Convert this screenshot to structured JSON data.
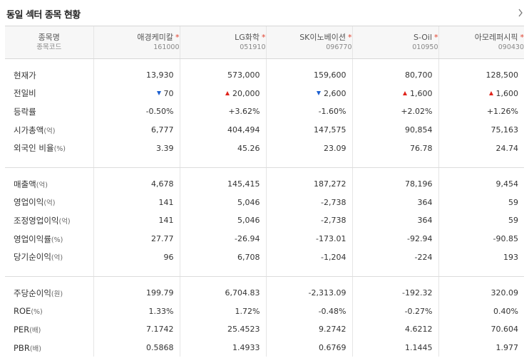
{
  "title": "동일 섹터 종목 현황",
  "header": {
    "label_name": "종목명",
    "label_code": "종목코드",
    "companies": [
      {
        "name": "애경케미칼",
        "code": "161000"
      },
      {
        "name": "LG화학",
        "code": "051910"
      },
      {
        "name": "SK이노베이션",
        "code": "096770"
      },
      {
        "name": "S-Oil",
        "code": "010950"
      },
      {
        "name": "아모레퍼시픽",
        "code": "090430"
      }
    ]
  },
  "sections": [
    {
      "rows": [
        {
          "label": "현재가",
          "unit": "",
          "values": [
            "13,930",
            "573,000",
            "159,600",
            "80,700",
            "128,500"
          ]
        },
        {
          "label": "전일비",
          "unit": "",
          "values": [
            "70",
            "20,000",
            "2,600",
            "1,600",
            "1,600"
          ],
          "directions": [
            "down",
            "up",
            "down",
            "up",
            "up"
          ]
        },
        {
          "label": "등락률",
          "unit": "",
          "values": [
            "-0.50%",
            "+3.62%",
            "-1.60%",
            "+2.02%",
            "+1.26%"
          ],
          "directions": [
            "down",
            "up",
            "down",
            "up",
            "up"
          ]
        },
        {
          "label": "시가총액",
          "unit": "(억)",
          "values": [
            "6,777",
            "404,494",
            "147,575",
            "90,854",
            "75,163"
          ]
        },
        {
          "label": "외국인 비율",
          "unit": "(%)",
          "values": [
            "3.39",
            "45.26",
            "23.09",
            "76.78",
            "24.74"
          ]
        }
      ]
    },
    {
      "rows": [
        {
          "label": "매출액",
          "unit": "(억)",
          "values": [
            "4,678",
            "145,415",
            "187,272",
            "78,196",
            "9,454"
          ]
        },
        {
          "label": "영업이익",
          "unit": "(억)",
          "values": [
            "141",
            "5,046",
            "-2,738",
            "364",
            "59"
          ]
        },
        {
          "label": "조정영업이익",
          "unit": "(억)",
          "values": [
            "141",
            "5,046",
            "-2,738",
            "364",
            "59"
          ]
        },
        {
          "label": "영업이익률",
          "unit": "(%)",
          "values": [
            "27.77",
            "-26.94",
            "-173.01",
            "-92.94",
            "-90.85"
          ]
        },
        {
          "label": "당기순이익",
          "unit": "(억)",
          "values": [
            "96",
            "6,708",
            "-1,204",
            "-224",
            "193"
          ]
        }
      ]
    },
    {
      "rows": [
        {
          "label": "주당순이익",
          "unit": "(원)",
          "values": [
            "199.79",
            "6,704.83",
            "-2,313.09",
            "-192.32",
            "320.09"
          ]
        },
        {
          "label": "ROE",
          "unit": "(%)",
          "values": [
            "1.33%",
            "1.72%",
            "-0.48%",
            "-0.27%",
            "0.40%"
          ]
        },
        {
          "label": "PER",
          "unit": "(배)",
          "values": [
            "7.1742",
            "25.4523",
            "9.2742",
            "4.6212",
            "70.604"
          ]
        },
        {
          "label": "PBR",
          "unit": "(배)",
          "values": [
            "0.5868",
            "1.4933",
            "0.6769",
            "1.1445",
            "1.977"
          ]
        }
      ]
    }
  ],
  "colors": {
    "up": "#e0241b",
    "down": "#1b5fd0",
    "star": "#e0412d"
  }
}
